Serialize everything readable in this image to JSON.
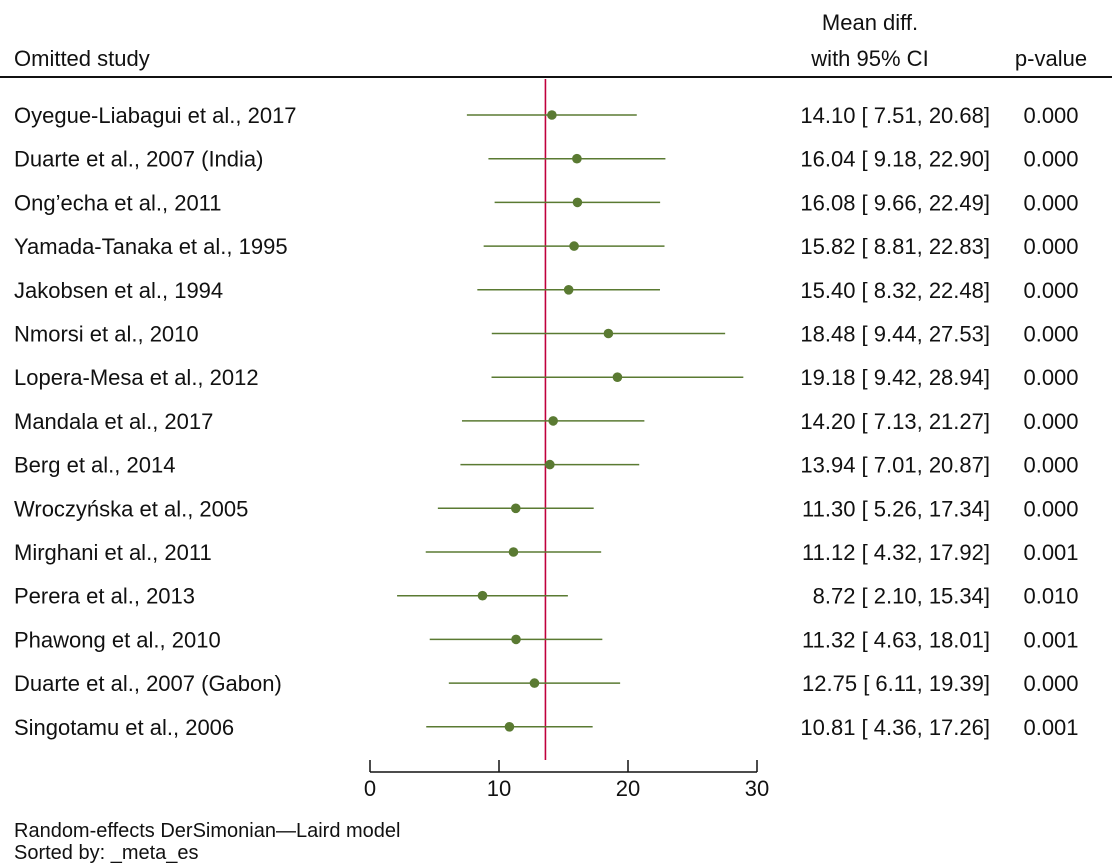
{
  "chart_data": {
    "type": "forest",
    "header": {
      "study_label": "Omitted study",
      "estimate_label_line1": "Mean diff.",
      "estimate_label_line2": "with 95% CI",
      "pvalue_label": "p-value"
    },
    "xlim": [
      0,
      30
    ],
    "xticks": [
      0,
      10,
      20,
      30
    ],
    "overall_estimate": 13.6,
    "colors": {
      "marker": "#5a7a32",
      "ci": "#5a7a32",
      "reference_line": "#c0003c",
      "text": "#111111"
    },
    "rows": [
      {
        "study": "Oyegue-Liabagui et al., 2017",
        "est": 14.1,
        "lo": 7.51,
        "hi": 20.68,
        "est_text": "14.10",
        "lo_text": "7.51",
        "hi_text": "20.68",
        "p": "0.000"
      },
      {
        "study": "Duarte et al., 2007 (India)",
        "est": 16.04,
        "lo": 9.18,
        "hi": 22.9,
        "est_text": "16.04",
        "lo_text": "9.18",
        "hi_text": "22.90",
        "p": "0.000"
      },
      {
        "study": "Ong’echa et al., 2011",
        "est": 16.08,
        "lo": 9.66,
        "hi": 22.49,
        "est_text": "16.08",
        "lo_text": "9.66",
        "hi_text": "22.49",
        "p": "0.000"
      },
      {
        "study": "Yamada-Tanaka et al., 1995",
        "est": 15.82,
        "lo": 8.81,
        "hi": 22.83,
        "est_text": "15.82",
        "lo_text": "8.81",
        "hi_text": "22.83",
        "p": "0.000"
      },
      {
        "study": "Jakobsen et al., 1994",
        "est": 15.4,
        "lo": 8.32,
        "hi": 22.48,
        "est_text": "15.40",
        "lo_text": "8.32",
        "hi_text": "22.48",
        "p": "0.000"
      },
      {
        "study": "Nmorsi et al., 2010",
        "est": 18.48,
        "lo": 9.44,
        "hi": 27.53,
        "est_text": "18.48",
        "lo_text": "9.44",
        "hi_text": "27.53",
        "p": "0.000"
      },
      {
        "study": "Lopera-Mesa et al., 2012",
        "est": 19.18,
        "lo": 9.42,
        "hi": 28.94,
        "est_text": "19.18",
        "lo_text": "9.42",
        "hi_text": "28.94",
        "p": "0.000"
      },
      {
        "study": "Mandala et al., 2017",
        "est": 14.2,
        "lo": 7.13,
        "hi": 21.27,
        "est_text": "14.20",
        "lo_text": "7.13",
        "hi_text": "21.27",
        "p": "0.000"
      },
      {
        "study": "Berg et al., 2014",
        "est": 13.94,
        "lo": 7.01,
        "hi": 20.87,
        "est_text": "13.94",
        "lo_text": "7.01",
        "hi_text": "20.87",
        "p": "0.000"
      },
      {
        "study": "Wroczyńska et al., 2005",
        "est": 11.3,
        "lo": 5.26,
        "hi": 17.34,
        "est_text": "11.30",
        "lo_text": "5.26",
        "hi_text": "17.34",
        "p": "0.000"
      },
      {
        "study": "Mirghani et al., 2011",
        "est": 11.12,
        "lo": 4.32,
        "hi": 17.92,
        "est_text": "11.12",
        "lo_text": "4.32",
        "hi_text": "17.92",
        "p": "0.001"
      },
      {
        "study": "Perera et al., 2013",
        "est": 8.72,
        "lo": 2.1,
        "hi": 15.34,
        "est_text": "8.72",
        "lo_text": "2.10",
        "hi_text": "15.34",
        "p": "0.010"
      },
      {
        "study": "Phawong et al., 2010",
        "est": 11.32,
        "lo": 4.63,
        "hi": 18.01,
        "est_text": "11.32",
        "lo_text": "4.63",
        "hi_text": "18.01",
        "p": "0.001"
      },
      {
        "study": "Duarte et al., 2007 (Gabon)",
        "est": 12.75,
        "lo": 6.11,
        "hi": 19.39,
        "est_text": "12.75",
        "lo_text": "6.11",
        "hi_text": "19.39",
        "p": "0.000"
      },
      {
        "study": "Singotamu et al., 2006",
        "est": 10.81,
        "lo": 4.36,
        "hi": 17.26,
        "est_text": "10.81",
        "lo_text": "4.36",
        "hi_text": "17.26",
        "p": "0.001"
      }
    ]
  },
  "notes": {
    "model": "Random-effects DerSimonian—Laird model",
    "sorted_by": "Sorted by: _meta_es"
  }
}
